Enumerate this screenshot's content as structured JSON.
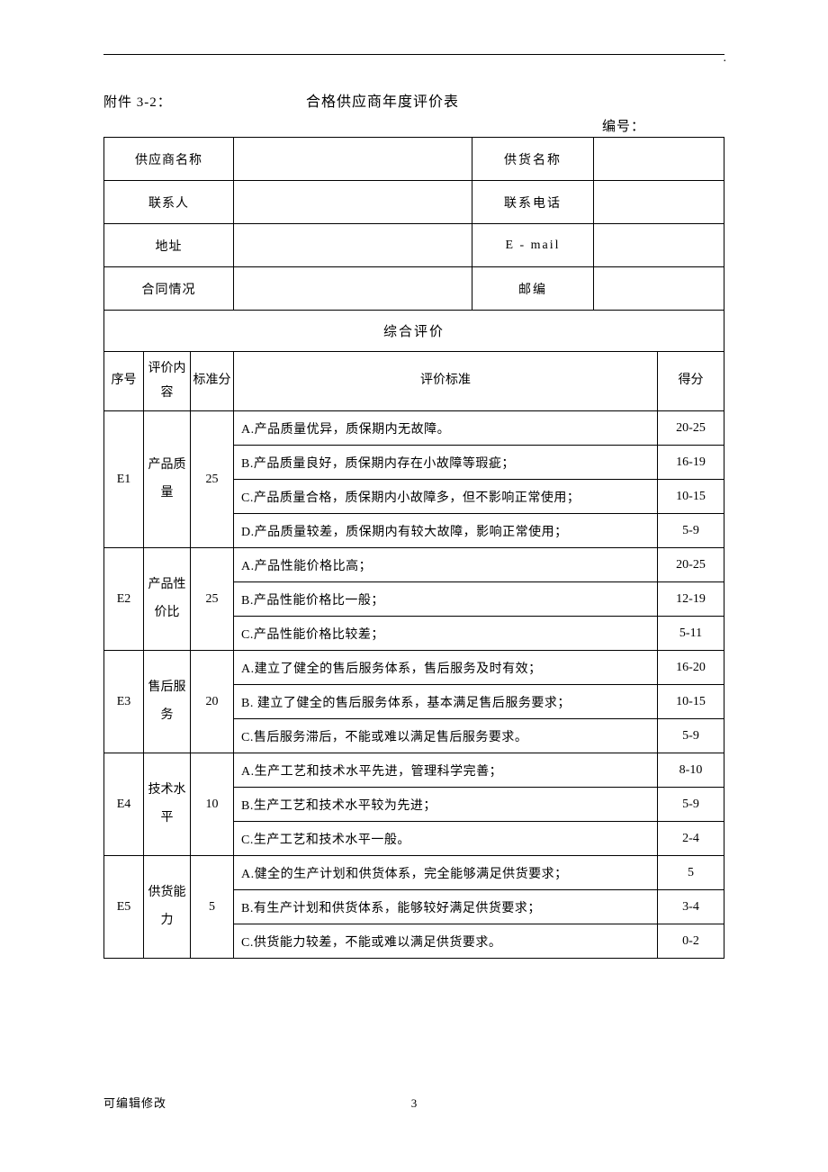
{
  "header": {
    "attachment_label": "附件 3-2：",
    "title": "合格供应商年度评价表",
    "serial_label": "编号："
  },
  "info": {
    "rows": [
      {
        "label1": "供应商名称",
        "value1": "",
        "label2": "供货名称",
        "value2": ""
      },
      {
        "label1": "联系人",
        "value1": "",
        "label2": "联系电话",
        "value2": ""
      },
      {
        "label1": "地址",
        "value1": "",
        "label2": "E - mail",
        "value2": ""
      },
      {
        "label1": "合同情况",
        "value1": "",
        "label2": "邮编",
        "value2": ""
      }
    ]
  },
  "section_header": "综合评价",
  "eval_headers": {
    "seq": "序号",
    "content": "评价内容",
    "stdscore": "标准分",
    "criteria": "评价标准",
    "score": "得分"
  },
  "eval_rows": [
    {
      "seq": "E1",
      "content": "产品质量",
      "stdscore": "25",
      "criteria": [
        {
          "text": "A.产品质量优异，质保期内无故障。",
          "score": "20-25"
        },
        {
          "text": "B.产品质量良好，质保期内存在小故障等瑕疵；",
          "score": "16-19"
        },
        {
          "text": "C.产品质量合格，质保期内小故障多，但不影响正常使用；",
          "score": "10-15"
        },
        {
          "text": "D.产品质量较差，质保期内有较大故障，影响正常使用；",
          "score": "5-9"
        }
      ]
    },
    {
      "seq": "E2",
      "content": "产品性价比",
      "stdscore": "25",
      "criteria": [
        {
          "text": "A.产品性能价格比高；",
          "score": "20-25"
        },
        {
          "text": "B.产品性能价格比一般；",
          "score": "12-19"
        },
        {
          "text": "C.产品性能价格比较差；",
          "score": "5-11"
        }
      ]
    },
    {
      "seq": "E3",
      "content": "售后服务",
      "stdscore": "20",
      "criteria": [
        {
          "text": "A.建立了健全的售后服务体系，售后服务及时有效；",
          "score": "16-20"
        },
        {
          "text": "B. 建立了健全的售后服务体系，基本满足售后服务要求；",
          "score": "10-15"
        },
        {
          "text": "C.售后服务滞后，不能或难以满足售后服务要求。",
          "score": "5-9"
        }
      ]
    },
    {
      "seq": "E4",
      "content": "技术水平",
      "stdscore": "10",
      "criteria": [
        {
          "text": "A.生产工艺和技术水平先进，管理科学完善；",
          "score": "8-10"
        },
        {
          "text": "B.生产工艺和技术水平较为先进；",
          "score": "5-9"
        },
        {
          "text": "C.生产工艺和技术水平一般。",
          "score": "2-4"
        }
      ]
    },
    {
      "seq": "E5",
      "content": "供货能力",
      "stdscore": "5",
      "criteria": [
        {
          "text": "A.健全的生产计划和供货体系，完全能够满足供货要求；",
          "score": "5"
        },
        {
          "text": "B.有生产计划和供货体系，能够较好满足供货要求；",
          "score": "3-4"
        },
        {
          "text": "C.供货能力较差，不能或难以满足供货要求。",
          "score": "0-2"
        }
      ]
    }
  ],
  "footer": {
    "left": "可编辑修改",
    "page": "3"
  },
  "colors": {
    "text": "#000000",
    "background": "#ffffff",
    "border": "#000000"
  }
}
